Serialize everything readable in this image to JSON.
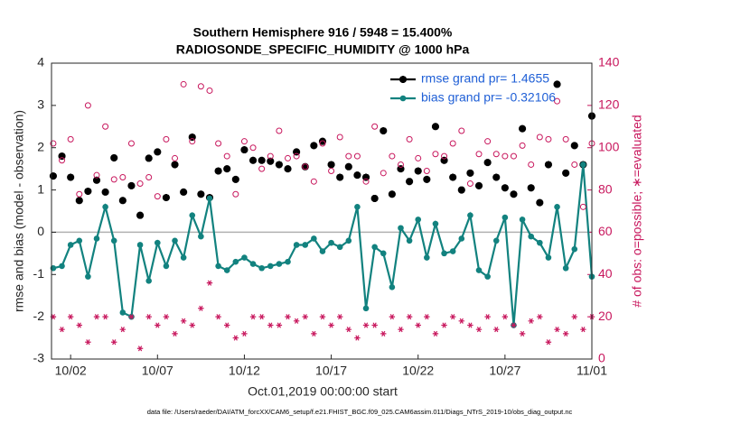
{
  "chart_data": {
    "type": "line",
    "title": "Southern Hemisphere 916 / 5948 = 15.400%",
    "subtitle": "RADIOSONDE_SPECIFIC_HUMIDITY @ 1000 hPa",
    "x_label": "Oct.01,2019 00:00:00 start",
    "y_label": "rmse and bias (model - observation)",
    "y2_label": "# of obs: o=possible; ∗=evaluated",
    "footnote": "data file: /Users/raeder/DAI/ATM_forcXX/CAM6_setup/f.e21.FHIST_BGC.f09_025.CAM6assim.011/Diags_NTrS_2019-10/obs_diag_output.nc",
    "xlim": [
      -0.1,
      31
    ],
    "xticks": [
      {
        "value": 1,
        "label": "10/02"
      },
      {
        "value": 6,
        "label": "10/07"
      },
      {
        "value": 11,
        "label": "10/12"
      },
      {
        "value": 16,
        "label": "10/17"
      },
      {
        "value": 21,
        "label": "10/22"
      },
      {
        "value": 26,
        "label": "10/27"
      },
      {
        "value": 31,
        "label": "11/01"
      }
    ],
    "ylim": [
      -3,
      4
    ],
    "yticks": [
      -3,
      -2,
      -1,
      0,
      1,
      2,
      3,
      4
    ],
    "y2lim": [
      0,
      140
    ],
    "y2ticks": [
      0,
      20,
      40,
      60,
      80,
      100,
      120,
      140
    ],
    "zero_line_color": "#b0b0b0",
    "legend": "upper right",
    "x": [
      0,
      0.5,
      1,
      1.5,
      2,
      2.5,
      3,
      3.5,
      4,
      4.5,
      5,
      5.5,
      6,
      6.5,
      7,
      7.5,
      8,
      8.5,
      9,
      9.5,
      10,
      10.5,
      11,
      11.5,
      12,
      12.5,
      13,
      13.5,
      14,
      14.5,
      15,
      15.5,
      16,
      16.5,
      17,
      17.5,
      18,
      18.5,
      19,
      19.5,
      20,
      20.5,
      21,
      21.5,
      22,
      22.5,
      23,
      23.5,
      24,
      24.5,
      25,
      25.5,
      26,
      26.5,
      27,
      27.5,
      28,
      28.5,
      29,
      29.5,
      30,
      30.5,
      31
    ],
    "series": [
      {
        "name": "rmse grand pr= 1.4655",
        "color": "#000000",
        "marker": "asterisk",
        "line": false,
        "values": [
          1.33,
          1.8,
          1.3,
          0.75,
          0.97,
          1.23,
          0.95,
          1.76,
          0.75,
          1.1,
          0.4,
          1.75,
          1.9,
          0.82,
          1.6,
          0.95,
          2.25,
          0.9,
          0.82,
          1.45,
          1.5,
          1.25,
          1.95,
          1.7,
          1.7,
          1.68,
          1.6,
          1.5,
          1.9,
          1.55,
          2.05,
          2.15,
          1.6,
          1.3,
          1.55,
          1.35,
          1.3,
          0.8,
          2.4,
          0.9,
          1.5,
          1.2,
          1.45,
          1.25,
          2.5,
          1.7,
          1.3,
          1.0,
          1.4,
          1.1,
          1.65,
          1.3,
          1.05,
          0.9,
          2.45,
          1.05,
          0.7,
          1.6,
          3.5,
          1.4,
          2.05,
          1.6,
          2.75
        ]
      },
      {
        "name": "bias grand pr= -0.32106",
        "color": "#12827f",
        "marker": "dot",
        "line": true,
        "values": [
          -0.85,
          -0.8,
          -0.3,
          -0.2,
          -1.05,
          -0.15,
          0.6,
          -0.2,
          -1.9,
          -2.0,
          -0.3,
          -1.15,
          -0.25,
          -0.8,
          -0.2,
          -0.6,
          0.4,
          -0.1,
          0.8,
          -0.8,
          -0.9,
          -0.7,
          -0.6,
          -0.75,
          -0.85,
          -0.8,
          -0.75,
          -0.7,
          -0.3,
          -0.3,
          -0.15,
          -0.45,
          -0.25,
          -0.35,
          -0.2,
          0.6,
          -1.8,
          -0.35,
          -0.5,
          -1.3,
          0.1,
          -0.2,
          0.3,
          -0.6,
          0.2,
          -0.5,
          -0.45,
          -0.15,
          0.4,
          -0.9,
          -1.05,
          -0.2,
          0.35,
          -2.2,
          0.3,
          -0.1,
          -0.25,
          -0.6,
          0.6,
          -0.85,
          -0.4,
          1.6,
          -1.05
        ]
      },
      {
        "color": "#c8175d",
        "marker": "circle",
        "line": false,
        "axis": "y2",
        "values": [
          102,
          94,
          104,
          78,
          120,
          87,
          110,
          85,
          86,
          102,
          83,
          86,
          77,
          104,
          95,
          130,
          103,
          129,
          127,
          102,
          96,
          78,
          103,
          100,
          90,
          96,
          108,
          95,
          96,
          91,
          84,
          102,
          89,
          105,
          96,
          96,
          84,
          110,
          88,
          96,
          92,
          104,
          95,
          89,
          97,
          96,
          102,
          108,
          83,
          97,
          103,
          97,
          96,
          96,
          101,
          92,
          105,
          104,
          122,
          104,
          92,
          72,
          102
        ]
      },
      {
        "color": "#c8175d",
        "marker": "asterisk",
        "line": false,
        "axis": "y2",
        "values": [
          20,
          14,
          20,
          16,
          8,
          20,
          20,
          8,
          14,
          20,
          5,
          20,
          16,
          20,
          12,
          18,
          16,
          24,
          36,
          20,
          16,
          10,
          12,
          20,
          20,
          16,
          16,
          20,
          18,
          20,
          12,
          20,
          16,
          20,
          14,
          10,
          16,
          16,
          12,
          20,
          14,
          20,
          16,
          20,
          12,
          16,
          20,
          18,
          16,
          14,
          20,
          14,
          20,
          16,
          12,
          18,
          20,
          8,
          14,
          12,
          20,
          14,
          20
        ]
      }
    ]
  }
}
